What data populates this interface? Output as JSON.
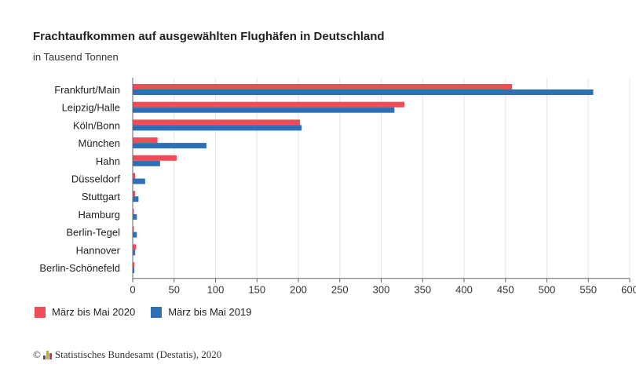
{
  "chart_data": {
    "type": "bar",
    "orientation": "horizontal",
    "title": "Frachtaufkommen auf ausgewählten Flughäfen in Deutschland",
    "subtitle": "in Tausend Tonnen",
    "categories": [
      "Frankfurt/Main",
      "Leipzig/Halle",
      "Köln/Bonn",
      "München",
      "Hahn",
      "Düsseldorf",
      "Stuttgart",
      "Hamburg",
      "Berlin-Tegel",
      "Hannover",
      "Berlin-Schönefeld"
    ],
    "series": [
      {
        "name": "März bis Mai 2020",
        "color": "#f24b58",
        "values": [
          458,
          328,
          202,
          30,
          53,
          3,
          3,
          1,
          1,
          4,
          2
        ]
      },
      {
        "name": "März bis Mai 2019",
        "color": "#2f6fb5",
        "values": [
          556,
          316,
          204,
          89,
          33,
          15,
          7,
          5,
          5,
          3,
          2
        ]
      }
    ],
    "xlim": [
      0,
      600
    ],
    "xticks": [
      0,
      50,
      100,
      150,
      200,
      250,
      300,
      350,
      400,
      450,
      500,
      550,
      600
    ],
    "grid": true,
    "legend_position": "bottom-left"
  },
  "footer": {
    "copyright": "©",
    "source": "Statistisches Bundesamt (Destatis), 2020"
  }
}
